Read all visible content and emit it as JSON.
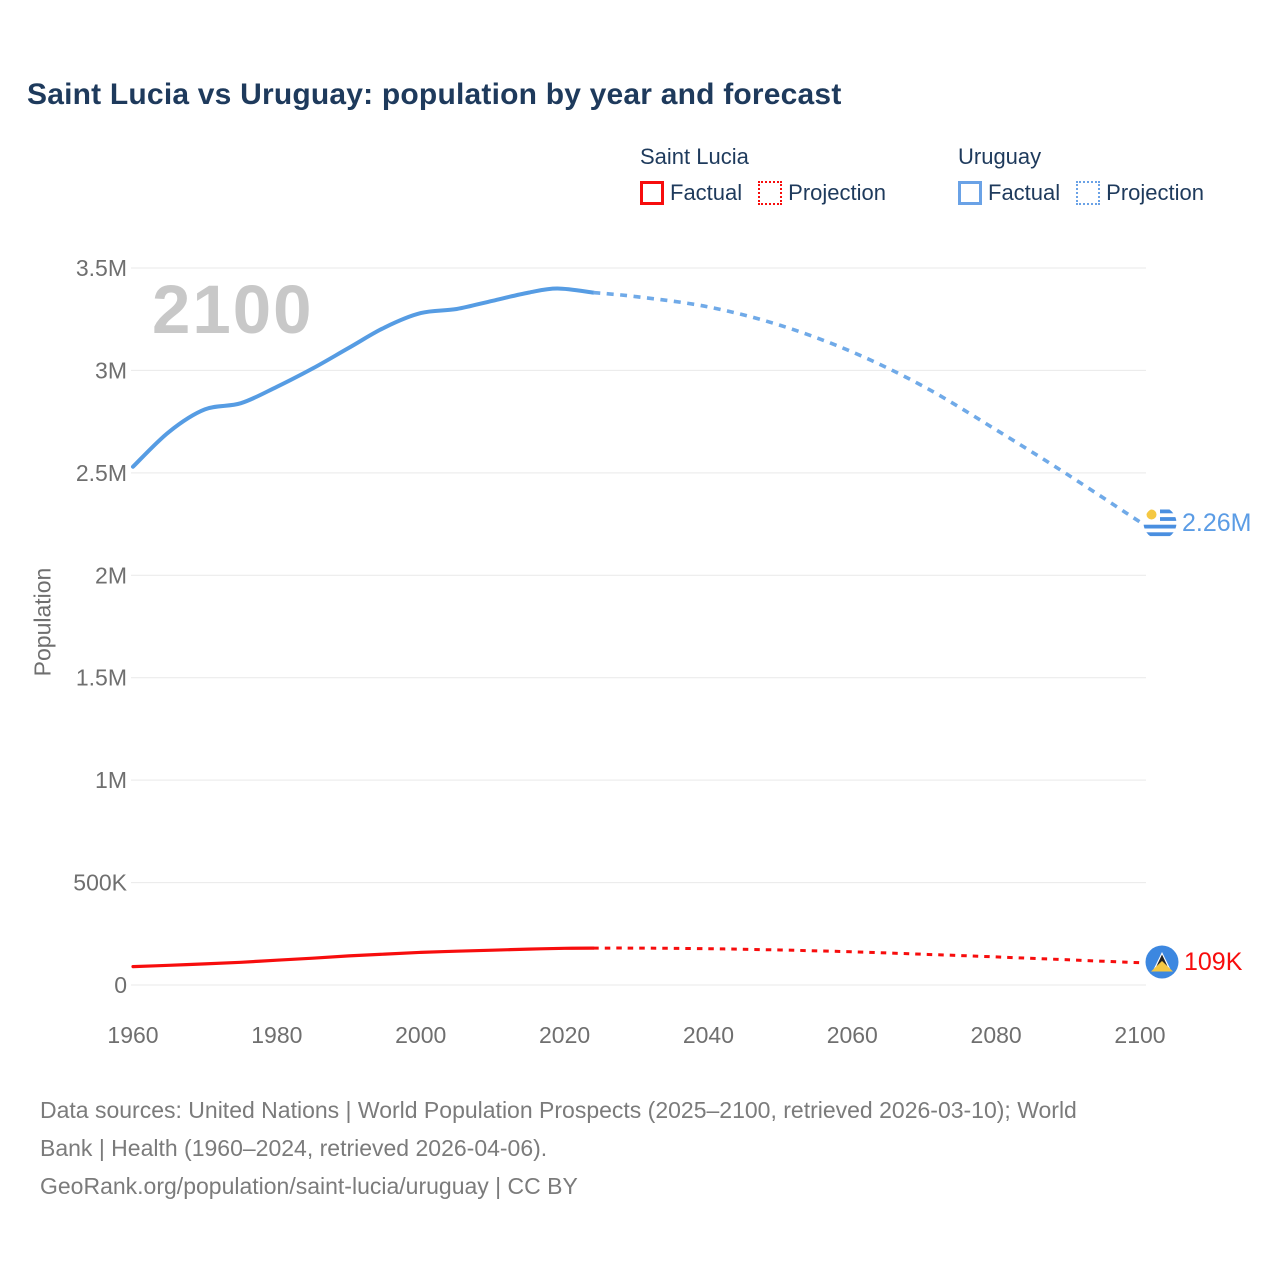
{
  "title": "Saint Lucia vs Uruguay: population by year and forecast",
  "watermark": "2100",
  "legend": {
    "groups": [
      {
        "name": "Saint Lucia",
        "factual_label": "Factual",
        "projection_label": "Projection",
        "color": "#f70d0d"
      },
      {
        "name": "Uruguay",
        "factual_label": "Factual",
        "projection_label": "Projection",
        "color": "#6aa2e6"
      }
    ]
  },
  "chart_data": {
    "type": "line",
    "title": "Saint Lucia vs Uruguay: population by year and forecast",
    "xlabel": "",
    "ylabel": "Population",
    "xlim": [
      1960,
      2100
    ],
    "ylim": [
      0,
      3500000
    ],
    "grid": "horizontal",
    "legend_position": "top-right",
    "x_ticks": [
      1960,
      1980,
      2000,
      2020,
      2040,
      2060,
      2080,
      2100
    ],
    "y_ticks": [
      {
        "value": 0.0,
        "label": "0"
      },
      {
        "value": 0.5,
        "label": "500K"
      },
      {
        "value": 1.0,
        "label": "1M"
      },
      {
        "value": 1.5,
        "label": "1.5M"
      },
      {
        "value": 2.0,
        "label": "2M"
      },
      {
        "value": 2.5,
        "label": "2.5M"
      },
      {
        "value": 3.0,
        "label": "3M"
      },
      {
        "value": 3.5,
        "label": "3.5M"
      }
    ],
    "y_unit": "millions of people",
    "series": [
      {
        "id": "uruguay-factual",
        "country": "Uruguay",
        "kind": "Factual",
        "style": "solid",
        "color": "#569ce3",
        "width": 4,
        "points": [
          [
            1960,
            2.53
          ],
          [
            1965,
            2.7
          ],
          [
            1970,
            2.81
          ],
          [
            1975,
            2.84
          ],
          [
            1980,
            2.92
          ],
          [
            1985,
            3.01
          ],
          [
            1990,
            3.11
          ],
          [
            1995,
            3.21
          ],
          [
            2000,
            3.28
          ],
          [
            2005,
            3.3
          ],
          [
            2010,
            3.34
          ],
          [
            2015,
            3.38
          ],
          [
            2019,
            3.4
          ],
          [
            2024,
            3.38
          ]
        ]
      },
      {
        "id": "uruguay-projection",
        "country": "Uruguay",
        "kind": "Projection",
        "style": "dashed",
        "color": "#70aae8",
        "width": 3.6,
        "dash": "7 6.5",
        "points": [
          [
            2024,
            3.38
          ],
          [
            2030,
            3.36
          ],
          [
            2040,
            3.31
          ],
          [
            2050,
            3.22
          ],
          [
            2060,
            3.09
          ],
          [
            2070,
            2.92
          ],
          [
            2080,
            2.71
          ],
          [
            2090,
            2.49
          ],
          [
            2100,
            2.26
          ]
        ]
      },
      {
        "id": "saint-lucia-factual",
        "country": "Saint Lucia",
        "kind": "Factual",
        "style": "solid",
        "color": "#f70d0d",
        "width": 3.2,
        "points": [
          [
            1960,
            0.09
          ],
          [
            1965,
            0.096
          ],
          [
            1970,
            0.103
          ],
          [
            1975,
            0.111
          ],
          [
            1980,
            0.121
          ],
          [
            1985,
            0.131
          ],
          [
            1990,
            0.142
          ],
          [
            1995,
            0.151
          ],
          [
            2000,
            0.159
          ],
          [
            2005,
            0.165
          ],
          [
            2010,
            0.17
          ],
          [
            2015,
            0.175
          ],
          [
            2020,
            0.179
          ],
          [
            2024,
            0.18
          ]
        ]
      },
      {
        "id": "saint-lucia-projection",
        "country": "Saint Lucia",
        "kind": "Projection",
        "style": "dashed",
        "color": "#f70d0d",
        "width": 3,
        "dash": "5.5 6",
        "points": [
          [
            2024,
            0.18
          ],
          [
            2030,
            0.18
          ],
          [
            2040,
            0.177
          ],
          [
            2050,
            0.171
          ],
          [
            2060,
            0.162
          ],
          [
            2070,
            0.15
          ],
          [
            2080,
            0.137
          ],
          [
            2090,
            0.123
          ],
          [
            2100,
            0.109
          ]
        ]
      }
    ],
    "end_labels": [
      {
        "country": "Uruguay",
        "label": "2.26M",
        "year": 2100,
        "value_millions": 2.26,
        "flag": "uruguay-flag"
      },
      {
        "country": "Saint Lucia",
        "label": "109K",
        "year": 2100,
        "value_millions": 0.109,
        "flag": "saint-lucia-flag"
      }
    ]
  },
  "footer": {
    "line1": "Data sources: United Nations | World Population Prospects (2025–2100, retrieved 2026-03-10); World",
    "line2": "Bank | Health (1960–2024, retrieved 2026-04-06).",
    "line3": "GeoRank.org/population/saint-lucia/uruguay | CC BY"
  }
}
